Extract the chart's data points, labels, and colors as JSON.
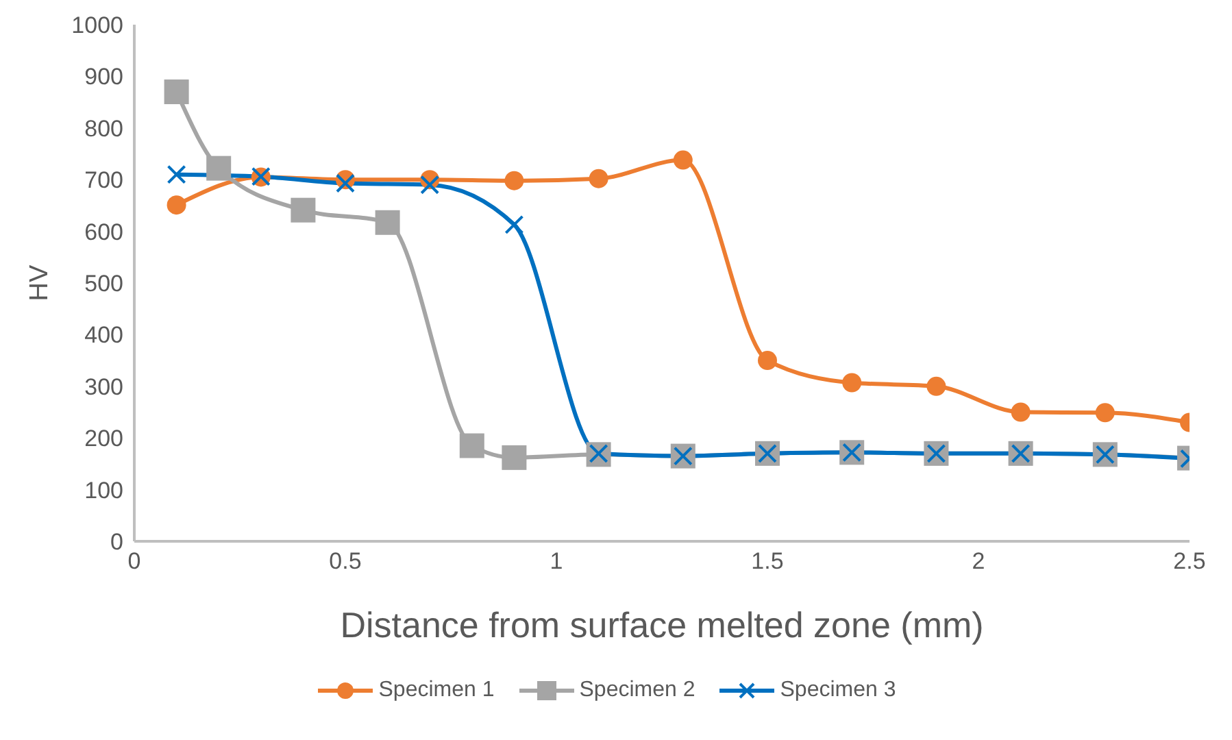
{
  "chart_data": {
    "type": "line",
    "xlabel": "Distance from surface melted zone (mm)",
    "ylabel": "HV",
    "xlim": [
      0,
      2.5
    ],
    "xticks": [
      0,
      0.5,
      1,
      1.5,
      2,
      2.5
    ],
    "ylim": [
      0,
      1000
    ],
    "yticks": [
      0,
      100,
      200,
      300,
      400,
      500,
      600,
      700,
      800,
      900,
      1000
    ],
    "grid": false,
    "legend": "bottom",
    "series": [
      {
        "name": "Specimen 1",
        "color": "#ed7d31",
        "marker": "circle",
        "x": [
          0.1,
          0.3,
          0.5,
          0.7,
          0.9,
          1.1,
          1.3,
          1.5,
          1.7,
          1.9,
          2.1,
          2.3,
          2.5
        ],
        "values": [
          651,
          705,
          700,
          700,
          698,
          702,
          738,
          350,
          307,
          300,
          250,
          249,
          230
        ]
      },
      {
        "name": "Specimen 2",
        "color": "#a5a5a5",
        "marker": "square",
        "x": [
          0.1,
          0.2,
          0.4,
          0.6,
          0.8,
          0.9,
          1.1,
          1.3,
          1.5,
          1.7,
          1.9,
          2.1,
          2.3,
          2.5
        ],
        "values": [
          870,
          722,
          641,
          617,
          185,
          162,
          168,
          165,
          170,
          172,
          170,
          170,
          168,
          161
        ]
      },
      {
        "name": "Specimen 3",
        "color": "#0070c0",
        "marker": "cross",
        "x": [
          0.1,
          0.3,
          0.5,
          0.7,
          0.9,
          1.1,
          1.3,
          1.5,
          1.7,
          1.9,
          2.1,
          2.3,
          2.5
        ],
        "values": [
          710,
          706,
          693,
          690,
          613,
          170,
          165,
          170,
          172,
          170,
          170,
          168,
          160
        ]
      }
    ]
  }
}
